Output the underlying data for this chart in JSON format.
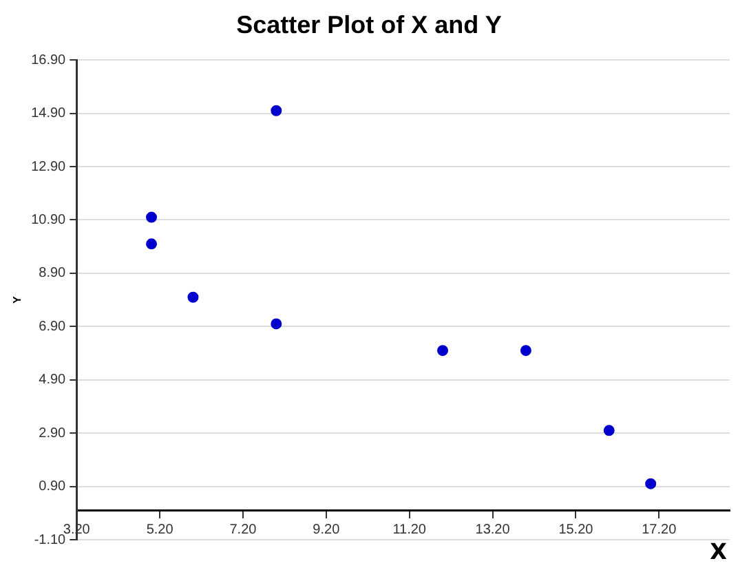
{
  "chart_data": {
    "type": "scatter",
    "title": "Scatter Plot of X and Y",
    "xlabel": "X",
    "ylabel": "Y",
    "x": [
      5,
      5,
      6,
      8,
      8,
      12,
      14,
      16,
      17
    ],
    "values": [
      11,
      10,
      8,
      15,
      7,
      6,
      6,
      3,
      1
    ],
    "color": "#0000cc",
    "marker": "circle",
    "xlim": [
      3.2,
      18.9
    ],
    "xticks": [
      {
        "value": 3.2,
        "label": "3.20"
      },
      {
        "value": 5.2,
        "label": "5.20"
      },
      {
        "value": 7.2,
        "label": "7.20"
      },
      {
        "value": 9.2,
        "label": "9.20"
      },
      {
        "value": 11.2,
        "label": "11.20"
      },
      {
        "value": 13.2,
        "label": "13.20"
      },
      {
        "value": 15.2,
        "label": "15.20"
      },
      {
        "value": 17.2,
        "label": "17.20"
      }
    ],
    "ylim": [
      -1.1,
      16.9
    ],
    "yticks": [
      {
        "value": -1.1,
        "label": "-1.10"
      },
      {
        "value": 0.9,
        "label": "0.90"
      },
      {
        "value": 2.9,
        "label": "2.90"
      },
      {
        "value": 4.9,
        "label": "4.90"
      },
      {
        "value": 6.9,
        "label": "6.90"
      },
      {
        "value": 8.9,
        "label": "8.90"
      },
      {
        "value": 10.9,
        "label": "10.90"
      },
      {
        "value": 12.9,
        "label": "12.90"
      },
      {
        "value": 14.9,
        "label": "14.90"
      },
      {
        "value": 16.9,
        "label": "16.90"
      }
    ],
    "grid": "y",
    "legend": false
  }
}
